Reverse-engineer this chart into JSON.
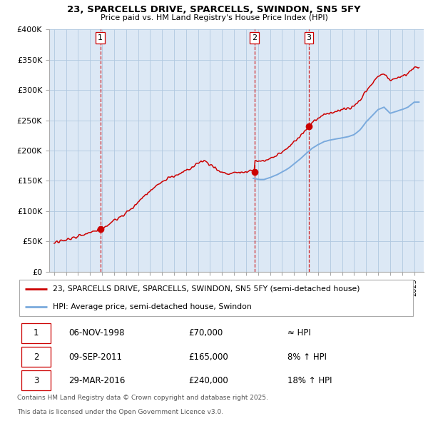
{
  "title": "23, SPARCELLS DRIVE, SPARCELLS, SWINDON, SN5 5FY",
  "subtitle": "Price paid vs. HM Land Registry's House Price Index (HPI)",
  "legend_line1": "23, SPARCELLS DRIVE, SPARCELLS, SWINDON, SN5 5FY (semi-detached house)",
  "legend_line2": "HPI: Average price, semi-detached house, Swindon",
  "footer_line1": "Contains HM Land Registry data © Crown copyright and database right 2025.",
  "footer_line2": "This data is licensed under the Open Government Licence v3.0.",
  "transactions": [
    {
      "num": 1,
      "date": "06-NOV-1998",
      "price": 70000,
      "rel": "≈ HPI",
      "year": 1998.85
    },
    {
      "num": 2,
      "date": "09-SEP-2011",
      "price": 165000,
      "rel": "8% ↑ HPI",
      "year": 2011.69
    },
    {
      "num": 3,
      "date": "29-MAR-2016",
      "price": 240000,
      "rel": "18% ↑ HPI",
      "year": 2016.24
    }
  ],
  "price_color": "#cc0000",
  "hpi_color": "#7aaadd",
  "dashed_line_color": "#cc0000",
  "chart_bg_color": "#dce8f5",
  "background_color": "#ffffff",
  "grid_color": "#b0c8e0",
  "ylim": [
    0,
    400000
  ],
  "yticks": [
    0,
    50000,
    100000,
    150000,
    200000,
    250000,
    300000,
    350000,
    400000
  ],
  "ytick_labels": [
    "£0",
    "£50K",
    "£100K",
    "£150K",
    "£200K",
    "£250K",
    "£300K",
    "£350K",
    "£400K"
  ],
  "xlim_start": 1994.6,
  "xlim_end": 2025.8
}
